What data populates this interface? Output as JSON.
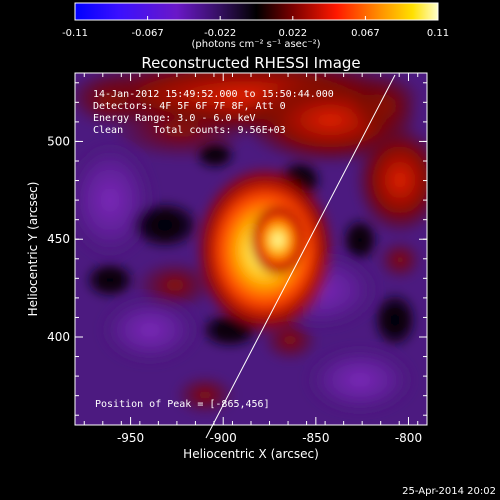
{
  "title": "Reconstructed RHESSI Image",
  "info_lines": [
    "14-Jan-2012 15:49:52.000 to 15:50:44.000",
    "Detectors: 4F 5F 6F 7F 8F, Att 0",
    "Energy Range: 3.0 - 6.0 keV",
    "Clean     Total counts: 9.56E+03"
  ],
  "peak_label": "Position of Peak = [-865,456]",
  "footer_date": "25-Apr-2014 20:02",
  "colorbar": {
    "ticks": [
      "-0.11",
      "-0.067",
      "-0.022",
      "0.022",
      "0.067",
      "0.11"
    ],
    "unit_label": "(photons cm⁻² s⁻¹ asec⁻²)",
    "range": [
      -0.11,
      0.11
    ]
  },
  "axes": {
    "x_label": "Heliocentric X (arcsec)",
    "y_label": "Heliocentric Y (arcsec)",
    "x_ticks": [
      "-950",
      "-900",
      "-850",
      "-800"
    ],
    "y_ticks": [
      "400",
      "450",
      "500"
    ],
    "x_tick_values": [
      -950,
      -900,
      -850,
      -800
    ],
    "y_tick_values": [
      400,
      450,
      500
    ],
    "x_range": [
      -980,
      -790
    ],
    "y_range": [
      355,
      535
    ]
  },
  "peak": {
    "x": -865,
    "y": 456
  },
  "colors": {
    "background": "#000000",
    "text": "#ffffff",
    "limb_line": "#ffffff"
  }
}
